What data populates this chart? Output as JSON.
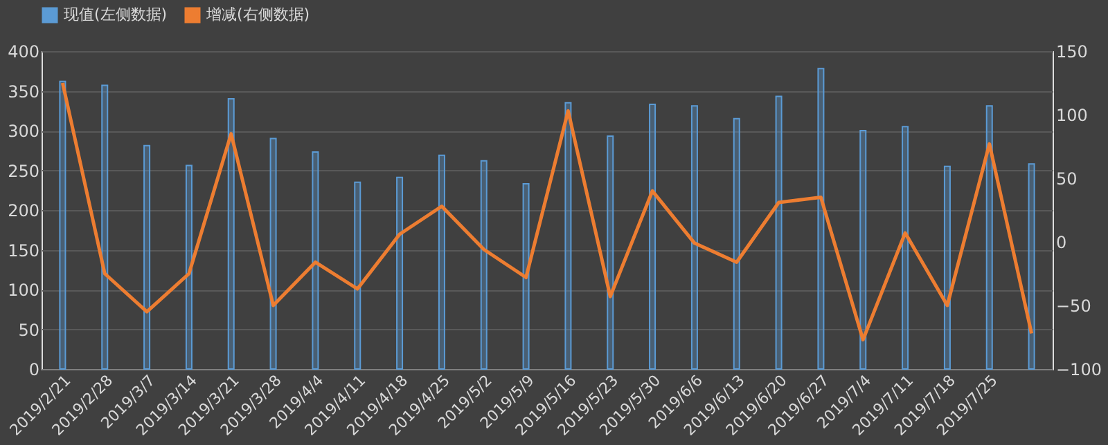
{
  "chart_data": {
    "type": "bar",
    "categories": [
      "2019/2/21",
      "2019/2/28",
      "2019/3/7",
      "2019/3/14",
      "2019/3/21",
      "2019/3/28",
      "2019/4/4",
      "2019/4/11",
      "2019/4/18",
      "2019/4/25",
      "2019/5/2",
      "2019/5/9",
      "2019/5/16",
      "2019/5/23",
      "2019/5/30",
      "2019/6/6",
      "2019/6/13",
      "2019/6/20",
      "2019/6/27",
      "2019/7/4",
      "2019/7/11",
      "2019/7/18",
      "2019/7/25",
      null
    ],
    "series": [
      {
        "name": "现值(左侧数据)",
        "color": "#5b9bd5",
        "values": [
          362,
          357,
          281,
          256,
          340,
          290,
          273,
          235,
          241,
          269,
          262,
          233,
          335,
          293,
          333,
          331,
          315,
          343,
          378,
          300,
          305,
          255,
          331,
          258
        ]
      },
      {
        "name": "增减(右侧数据)",
        "type": "line",
        "axis": "y2",
        "color": "#ed7d31",
        "values": [
          125,
          -25,
          -55,
          -25,
          85,
          -50,
          -16,
          -37,
          6,
          28,
          -6,
          -28,
          103,
          -43,
          40,
          -1,
          -16,
          31,
          35,
          -77,
          7,
          -50,
          77,
          -72
        ]
      }
    ],
    "ylim": [
      0,
      400
    ],
    "yticks": [
      0,
      50,
      100,
      150,
      200,
      250,
      300,
      350,
      400
    ],
    "y2lim": [
      -100,
      150
    ],
    "y2ticks": [
      -100,
      -50,
      0,
      50,
      100,
      150
    ],
    "grid": "y",
    "legend": "top",
    "marker": "none",
    "line_style": "solid"
  }
}
